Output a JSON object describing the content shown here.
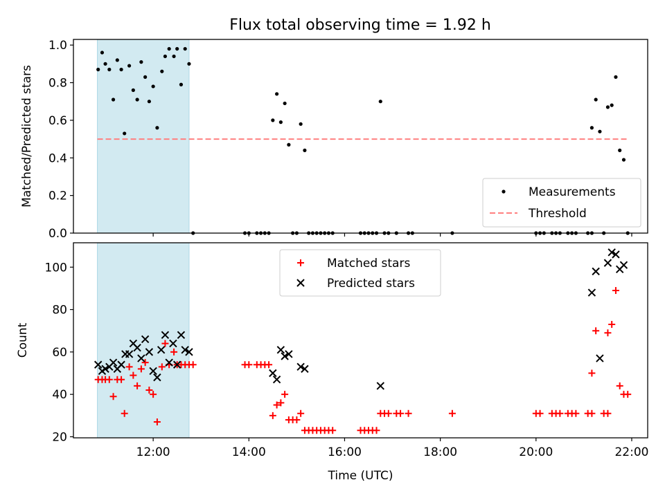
{
  "figure": {
    "title": "Flux total observing time = 1.92 h"
  },
  "chart_data": [
    {
      "type": "scatter",
      "panel": "top",
      "ylabel": "Matched/Predicted stars",
      "xlabel": "",
      "xlim": [
        "10:20",
        "22:20"
      ],
      "ylim": [
        0,
        1.03
      ],
      "yticks": [
        "0.0",
        "0.2",
        "0.4",
        "0.6",
        "0.8",
        "1.0"
      ],
      "ytick_values": [
        0,
        0.2,
        0.4,
        0.6,
        0.8,
        1.0
      ],
      "xtick_values": [
        "12:00",
        "14:00",
        "16:00",
        "18:00",
        "20:00",
        "22:00"
      ],
      "xtick_labels_shown": false,
      "shaded_interval": {
        "x": [
          "10:50",
          "12:45"
        ],
        "color": "#add8e6"
      },
      "threshold": {
        "name": "Threshold",
        "y": 0.5,
        "x": [
          "10:50",
          "21:55"
        ],
        "color": "#ff7f7f",
        "style": "dashed"
      },
      "series": [
        {
          "name": "Measurements",
          "color": "#000000",
          "marker": "dot",
          "points": [
            [
              "10:51",
              0.87
            ],
            [
              "10:56",
              0.96
            ],
            [
              "11:00",
              0.9
            ],
            [
              "11:05",
              0.87
            ],
            [
              "11:10",
              0.71
            ],
            [
              "11:15",
              0.92
            ],
            [
              "11:20",
              0.87
            ],
            [
              "11:24",
              0.53
            ],
            [
              "11:30",
              0.89
            ],
            [
              "11:35",
              0.76
            ],
            [
              "11:40",
              0.71
            ],
            [
              "11:45",
              0.91
            ],
            [
              "11:50",
              0.83
            ],
            [
              "11:55",
              0.7
            ],
            [
              "12:00",
              0.78
            ],
            [
              "12:05",
              0.56
            ],
            [
              "12:11",
              0.86
            ],
            [
              "12:15",
              0.94
            ],
            [
              "12:20",
              0.98
            ],
            [
              "12:26",
              0.94
            ],
            [
              "12:30",
              0.98
            ],
            [
              "12:35",
              0.79
            ],
            [
              "12:40",
              0.98
            ],
            [
              "12:45",
              0.9
            ],
            [
              "12:50",
              0.0
            ],
            [
              "13:55",
              0.0
            ],
            [
              "14:00",
              0.0
            ],
            [
              "14:10",
              0.0
            ],
            [
              "14:15",
              0.0
            ],
            [
              "14:20",
              0.0
            ],
            [
              "14:25",
              0.0
            ],
            [
              "14:30",
              0.6
            ],
            [
              "14:35",
              0.74
            ],
            [
              "14:40",
              0.59
            ],
            [
              "14:45",
              0.69
            ],
            [
              "14:50",
              0.47
            ],
            [
              "14:55",
              0.0
            ],
            [
              "15:00",
              0.0
            ],
            [
              "15:05",
              0.58
            ],
            [
              "15:10",
              0.44
            ],
            [
              "15:15",
              0.0
            ],
            [
              "15:20",
              0.0
            ],
            [
              "15:25",
              0.0
            ],
            [
              "15:30",
              0.0
            ],
            [
              "15:35",
              0.0
            ],
            [
              "15:40",
              0.0
            ],
            [
              "15:45",
              0.0
            ],
            [
              "16:20",
              0.0
            ],
            [
              "16:25",
              0.0
            ],
            [
              "16:30",
              0.0
            ],
            [
              "16:35",
              0.0
            ],
            [
              "16:40",
              0.0
            ],
            [
              "16:45",
              0.7
            ],
            [
              "16:50",
              0.0
            ],
            [
              "16:55",
              0.0
            ],
            [
              "17:05",
              0.0
            ],
            [
              "17:20",
              0.0
            ],
            [
              "17:25",
              0.0
            ],
            [
              "18:15",
              0.0
            ],
            [
              "20:00",
              0.0
            ],
            [
              "20:05",
              0.0
            ],
            [
              "20:10",
              0.0
            ],
            [
              "20:20",
              0.0
            ],
            [
              "20:25",
              0.0
            ],
            [
              "20:30",
              0.0
            ],
            [
              "20:40",
              0.0
            ],
            [
              "20:45",
              0.0
            ],
            [
              "20:50",
              0.0
            ],
            [
              "21:05",
              0.0
            ],
            [
              "21:10",
              0.0
            ],
            [
              "21:10",
              0.56
            ],
            [
              "21:15",
              0.71
            ],
            [
              "21:20",
              0.54
            ],
            [
              "21:25",
              0.0
            ],
            [
              "21:30",
              0.67
            ],
            [
              "21:35",
              0.68
            ],
            [
              "21:40",
              0.83
            ],
            [
              "21:45",
              0.44
            ],
            [
              "21:50",
              0.39
            ],
            [
              "21:55",
              0.0
            ]
          ]
        }
      ],
      "legend": {
        "placement": "lower-right",
        "entries": [
          "Measurements",
          "Threshold"
        ]
      }
    },
    {
      "type": "scatter",
      "panel": "bottom",
      "ylabel": "Count",
      "xlabel": "Time (UTC)",
      "xlim": [
        "10:20",
        "22:20"
      ],
      "ylim": [
        19.5,
        111.5
      ],
      "yticks": [
        "20",
        "40",
        "60",
        "80",
        "100"
      ],
      "ytick_values": [
        20,
        40,
        60,
        80,
        100
      ],
      "xticks": [
        "12:00",
        "14:00",
        "16:00",
        "18:00",
        "20:00",
        "22:00"
      ],
      "shaded_interval": {
        "x": [
          "10:50",
          "12:45"
        ],
        "color": "#add8e6"
      },
      "series": [
        {
          "name": "Matched stars",
          "color": "#ff0000",
          "marker": "plus",
          "points": [
            [
              "10:51",
              47
            ],
            [
              "10:56",
              47
            ],
            [
              "11:00",
              47
            ],
            [
              "11:05",
              47
            ],
            [
              "11:10",
              39
            ],
            [
              "11:15",
              47
            ],
            [
              "11:20",
              47
            ],
            [
              "11:24",
              31
            ],
            [
              "11:30",
              53
            ],
            [
              "11:35",
              49
            ],
            [
              "11:40",
              44
            ],
            [
              "11:45",
              52
            ],
            [
              "11:50",
              55
            ],
            [
              "11:55",
              42
            ],
            [
              "12:00",
              40
            ],
            [
              "12:05",
              27
            ],
            [
              "12:11",
              53
            ],
            [
              "12:15",
              64
            ],
            [
              "12:20",
              54
            ],
            [
              "12:26",
              60
            ],
            [
              "12:30",
              54
            ],
            [
              "12:35",
              54
            ],
            [
              "12:40",
              54
            ],
            [
              "12:45",
              54
            ],
            [
              "12:50",
              54
            ],
            [
              "13:55",
              54
            ],
            [
              "14:00",
              54
            ],
            [
              "14:10",
              54
            ],
            [
              "14:15",
              54
            ],
            [
              "14:20",
              54
            ],
            [
              "14:25",
              54
            ],
            [
              "14:30",
              30
            ],
            [
              "14:35",
              35
            ],
            [
              "14:40",
              36
            ],
            [
              "14:45",
              40
            ],
            [
              "14:50",
              28
            ],
            [
              "14:55",
              28
            ],
            [
              "15:00",
              28
            ],
            [
              "15:05",
              31
            ],
            [
              "15:10",
              23
            ],
            [
              "15:15",
              23
            ],
            [
              "15:20",
              23
            ],
            [
              "15:25",
              23
            ],
            [
              "15:30",
              23
            ],
            [
              "15:35",
              23
            ],
            [
              "15:40",
              23
            ],
            [
              "15:45",
              23
            ],
            [
              "16:20",
              23
            ],
            [
              "16:25",
              23
            ],
            [
              "16:30",
              23
            ],
            [
              "16:35",
              23
            ],
            [
              "16:40",
              23
            ],
            [
              "16:45",
              31
            ],
            [
              "16:50",
              31
            ],
            [
              "16:55",
              31
            ],
            [
              "17:05",
              31
            ],
            [
              "17:10",
              31
            ],
            [
              "17:20",
              31
            ],
            [
              "18:15",
              31
            ],
            [
              "20:00",
              31
            ],
            [
              "20:05",
              31
            ],
            [
              "20:20",
              31
            ],
            [
              "20:25",
              31
            ],
            [
              "20:30",
              31
            ],
            [
              "20:40",
              31
            ],
            [
              "20:45",
              31
            ],
            [
              "20:50",
              31
            ],
            [
              "21:05",
              31
            ],
            [
              "21:10",
              31
            ],
            [
              "21:10",
              50
            ],
            [
              "21:15",
              70
            ],
            [
              "21:25",
              31
            ],
            [
              "21:30",
              31
            ],
            [
              "21:30",
              69
            ],
            [
              "21:35",
              73
            ],
            [
              "21:40",
              89
            ],
            [
              "21:45",
              44
            ],
            [
              "21:50",
              40
            ],
            [
              "21:55",
              40
            ]
          ]
        },
        {
          "name": "Predicted stars",
          "color": "#000000",
          "marker": "x",
          "points": [
            [
              "10:51",
              54
            ],
            [
              "10:56",
              51
            ],
            [
              "11:00",
              52
            ],
            [
              "11:05",
              53
            ],
            [
              "11:10",
              55
            ],
            [
              "11:15",
              52
            ],
            [
              "11:20",
              54
            ],
            [
              "11:25",
              59
            ],
            [
              "11:30",
              59
            ],
            [
              "11:35",
              64
            ],
            [
              "11:40",
              62
            ],
            [
              "11:45",
              57
            ],
            [
              "11:50",
              66
            ],
            [
              "11:55",
              60
            ],
            [
              "12:00",
              51
            ],
            [
              "12:05",
              48
            ],
            [
              "12:10",
              61
            ],
            [
              "12:15",
              68
            ],
            [
              "12:20",
              55
            ],
            [
              "12:25",
              64
            ],
            [
              "12:30",
              54
            ],
            [
              "12:35",
              68
            ],
            [
              "12:40",
              61
            ],
            [
              "12:45",
              60
            ],
            [
              "14:30",
              50
            ],
            [
              "14:35",
              47
            ],
            [
              "14:40",
              61
            ],
            [
              "14:45",
              58
            ],
            [
              "14:50",
              59
            ],
            [
              "15:05",
              53
            ],
            [
              "15:10",
              52
            ],
            [
              "16:45",
              44
            ],
            [
              "21:10",
              88
            ],
            [
              "21:15",
              98
            ],
            [
              "21:20",
              57
            ],
            [
              "21:30",
              102
            ],
            [
              "21:35",
              107
            ],
            [
              "21:40",
              106
            ],
            [
              "21:45",
              99
            ],
            [
              "21:50",
              101
            ]
          ]
        }
      ],
      "legend": {
        "placement": "upper-center",
        "entries": [
          "Matched stars",
          "Predicted stars"
        ]
      }
    }
  ]
}
